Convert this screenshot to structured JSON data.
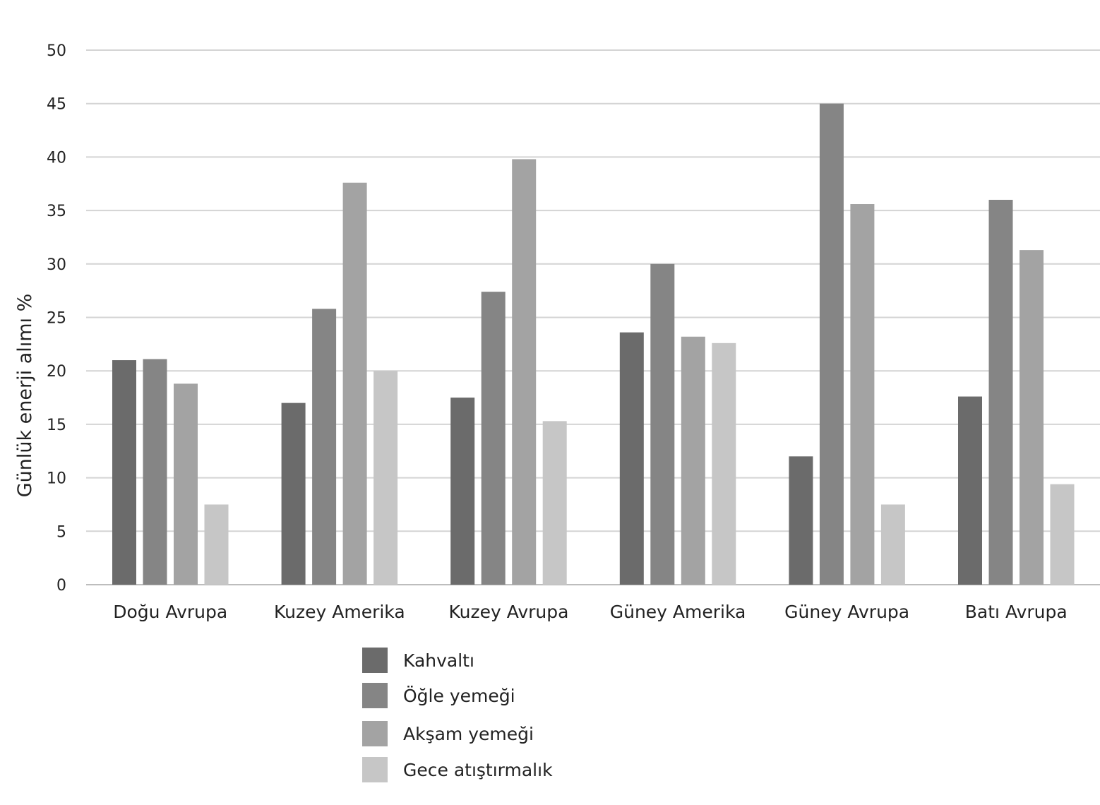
{
  "chart_data": {
    "type": "bar",
    "title": "",
    "xlabel": "",
    "ylabel": "Günlük enerji alımı %",
    "ylim": [
      0,
      50
    ],
    "yticks": [
      0,
      5,
      10,
      15,
      20,
      25,
      30,
      35,
      40,
      45,
      50
    ],
    "grid": true,
    "legend_position": "bottom",
    "categories": [
      "Doğu Avrupa",
      "Kuzey Amerika",
      "Kuzey Avrupa",
      "Güney Amerika",
      "Güney Avrupa",
      "Batı Avrupa"
    ],
    "series": [
      {
        "name": "Kahvaltı",
        "color": "#6b6b6b",
        "values": [
          21.0,
          17.0,
          17.5,
          23.6,
          12.0,
          17.6
        ]
      },
      {
        "name": "Öğle yemeği",
        "color": "#858585",
        "values": [
          21.1,
          25.8,
          27.4,
          30.0,
          45.0,
          36.0
        ]
      },
      {
        "name": "Akşam yemeği",
        "color": "#a3a3a3",
        "values": [
          18.8,
          37.6,
          39.8,
          23.2,
          35.6,
          31.3
        ]
      },
      {
        "name": "Gece atıştırmalık",
        "color": "#c6c6c6",
        "values": [
          7.5,
          20.0,
          15.3,
          22.6,
          7.5,
          9.4
        ]
      }
    ]
  }
}
